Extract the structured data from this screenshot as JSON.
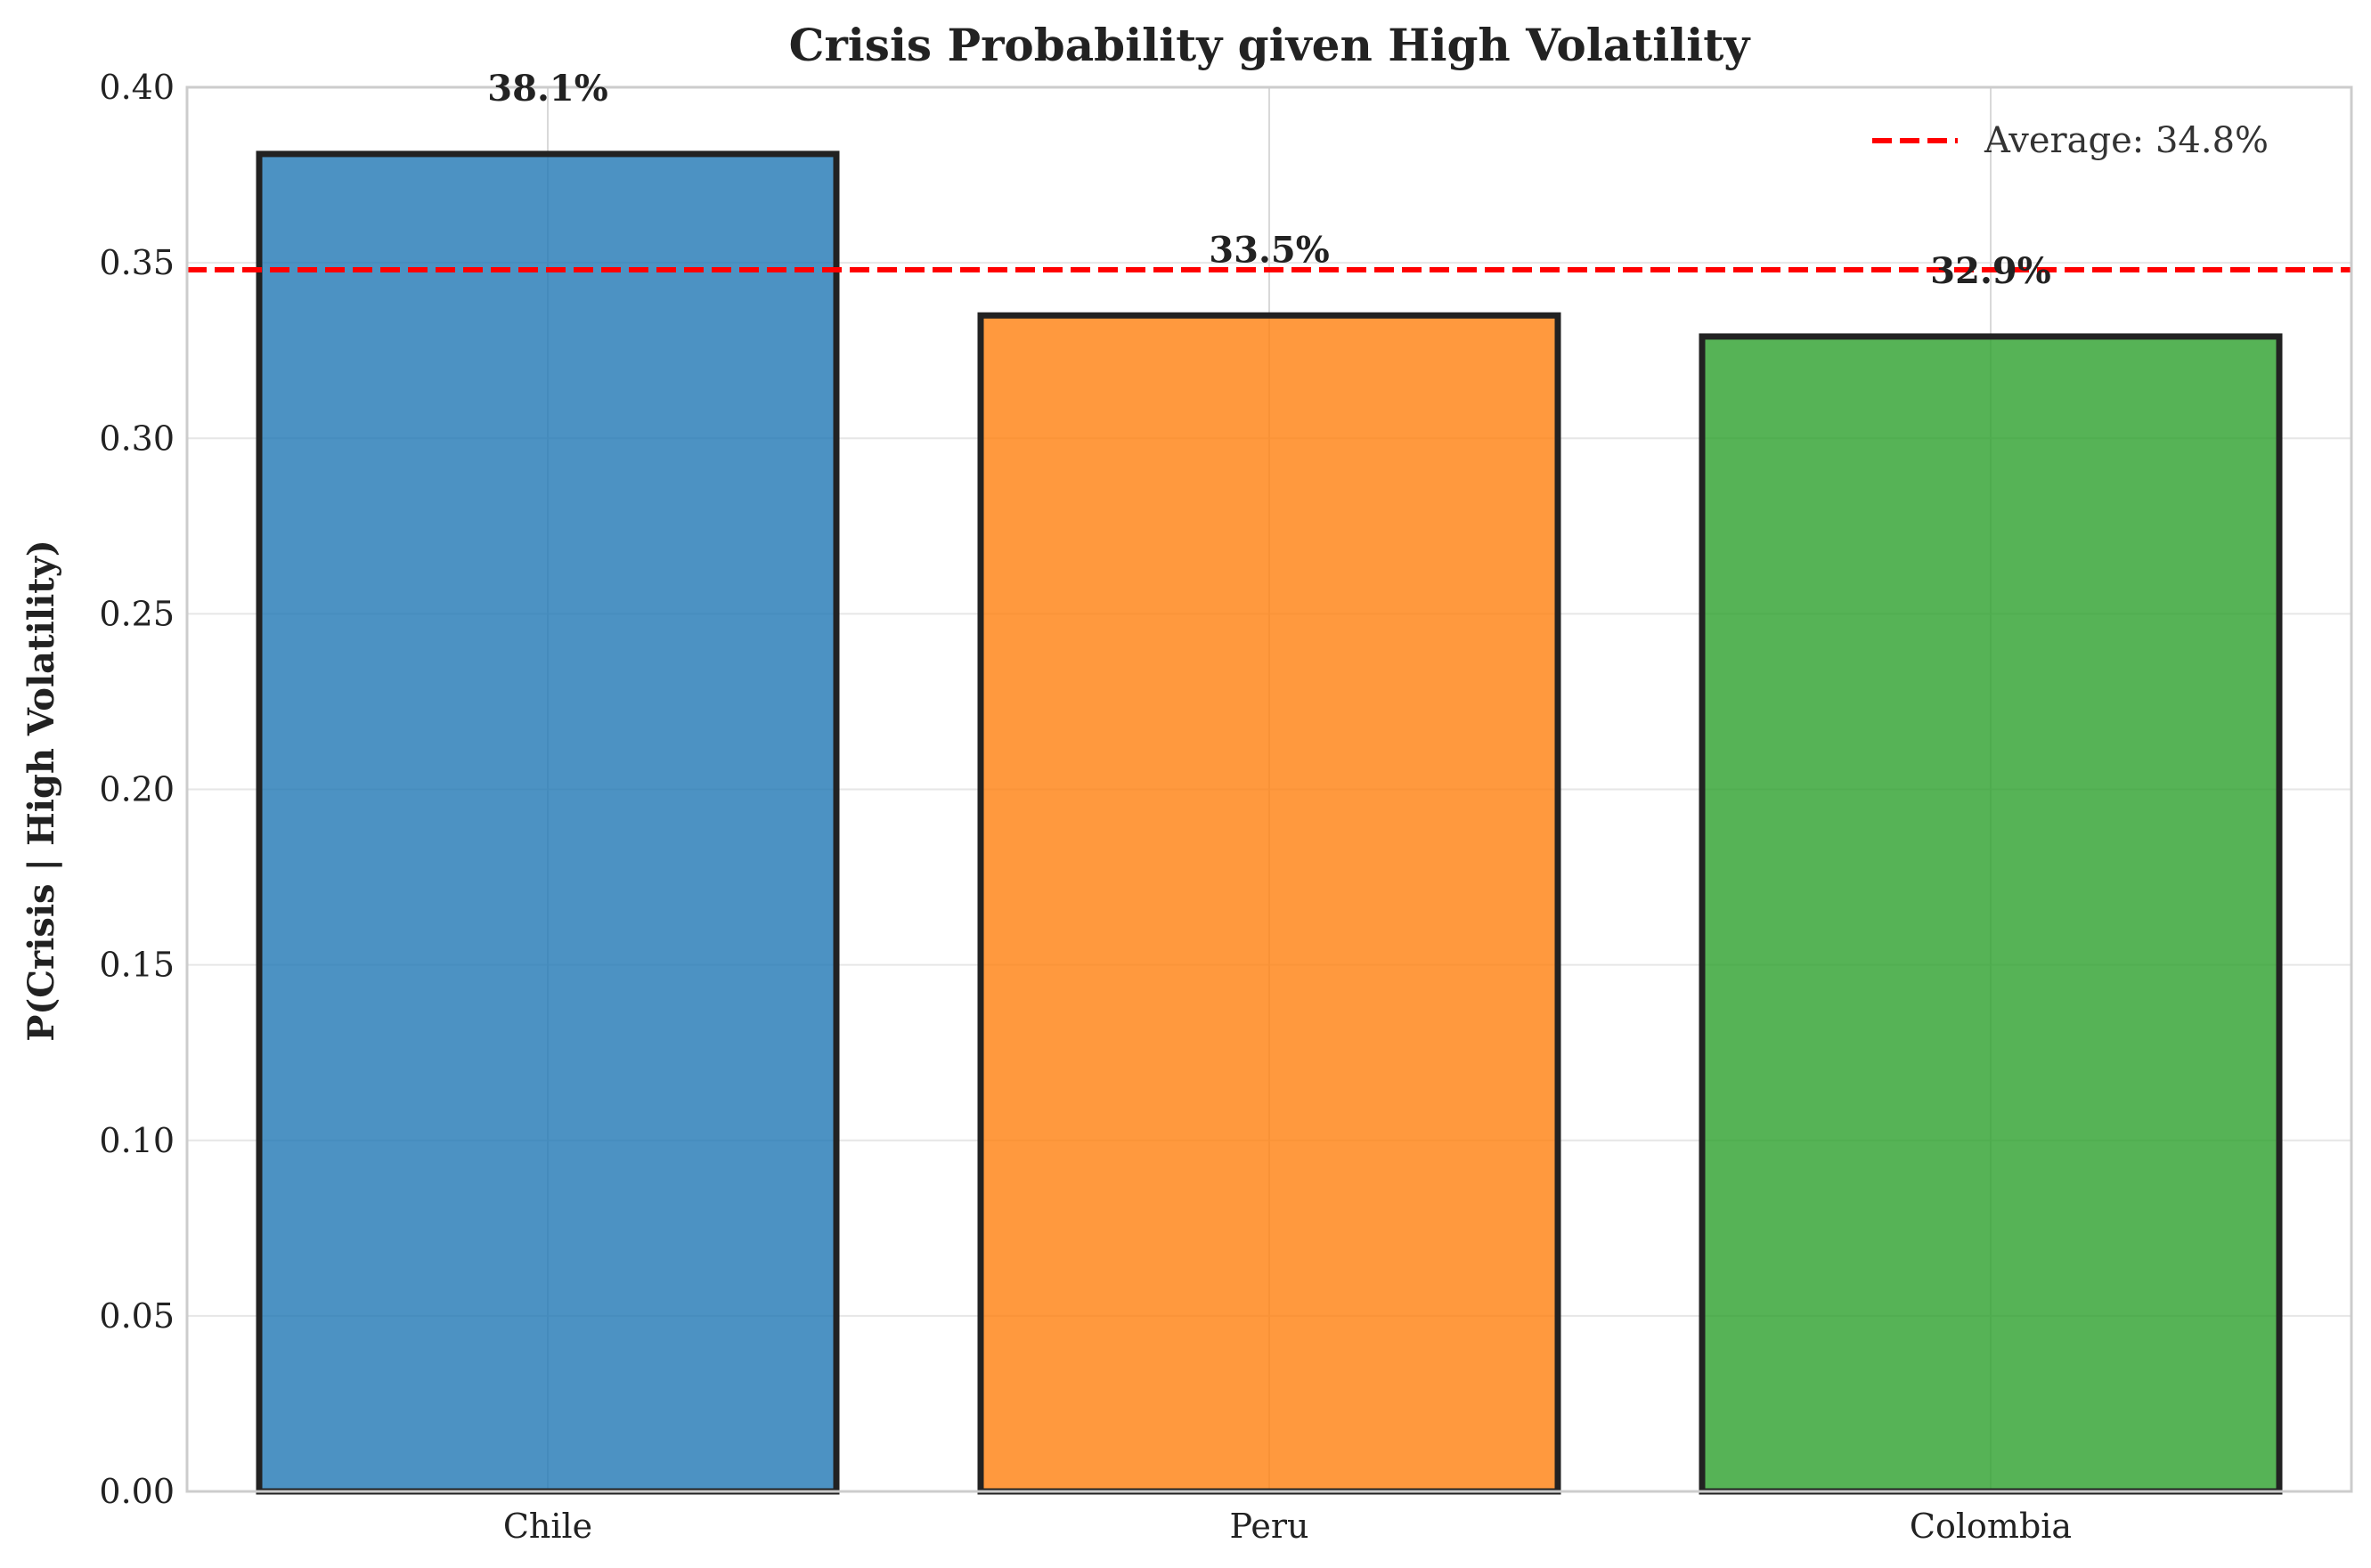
{
  "chart_data": {
    "type": "bar",
    "title": "Crisis Probability given High Volatility",
    "xlabel": "",
    "ylabel": "P(Crisis | High Volatility)",
    "categories": [
      "Chile",
      "Peru",
      "Colombia"
    ],
    "values": [
      0.381,
      0.335,
      0.329
    ],
    "value_labels": [
      "38.1%",
      "33.5%",
      "32.9%"
    ],
    "colors": [
      "#1f77b4",
      "#ff7f0e",
      "#2ca02c"
    ],
    "ylim": [
      0,
      0.4
    ],
    "yticks": [
      "0.00",
      "0.05",
      "0.10",
      "0.15",
      "0.20",
      "0.25",
      "0.30",
      "0.35",
      "0.40"
    ],
    "ytick_values": [
      0,
      0.05,
      0.1,
      0.15,
      0.2,
      0.25,
      0.3,
      0.35,
      0.4
    ],
    "reference_line": {
      "value": 0.348,
      "label": "Average: 34.8%",
      "color": "#ff0000",
      "style": "dashed"
    },
    "legend": {
      "placement": "top-right",
      "entries": [
        "Average: 34.8%"
      ]
    },
    "grid": true
  }
}
